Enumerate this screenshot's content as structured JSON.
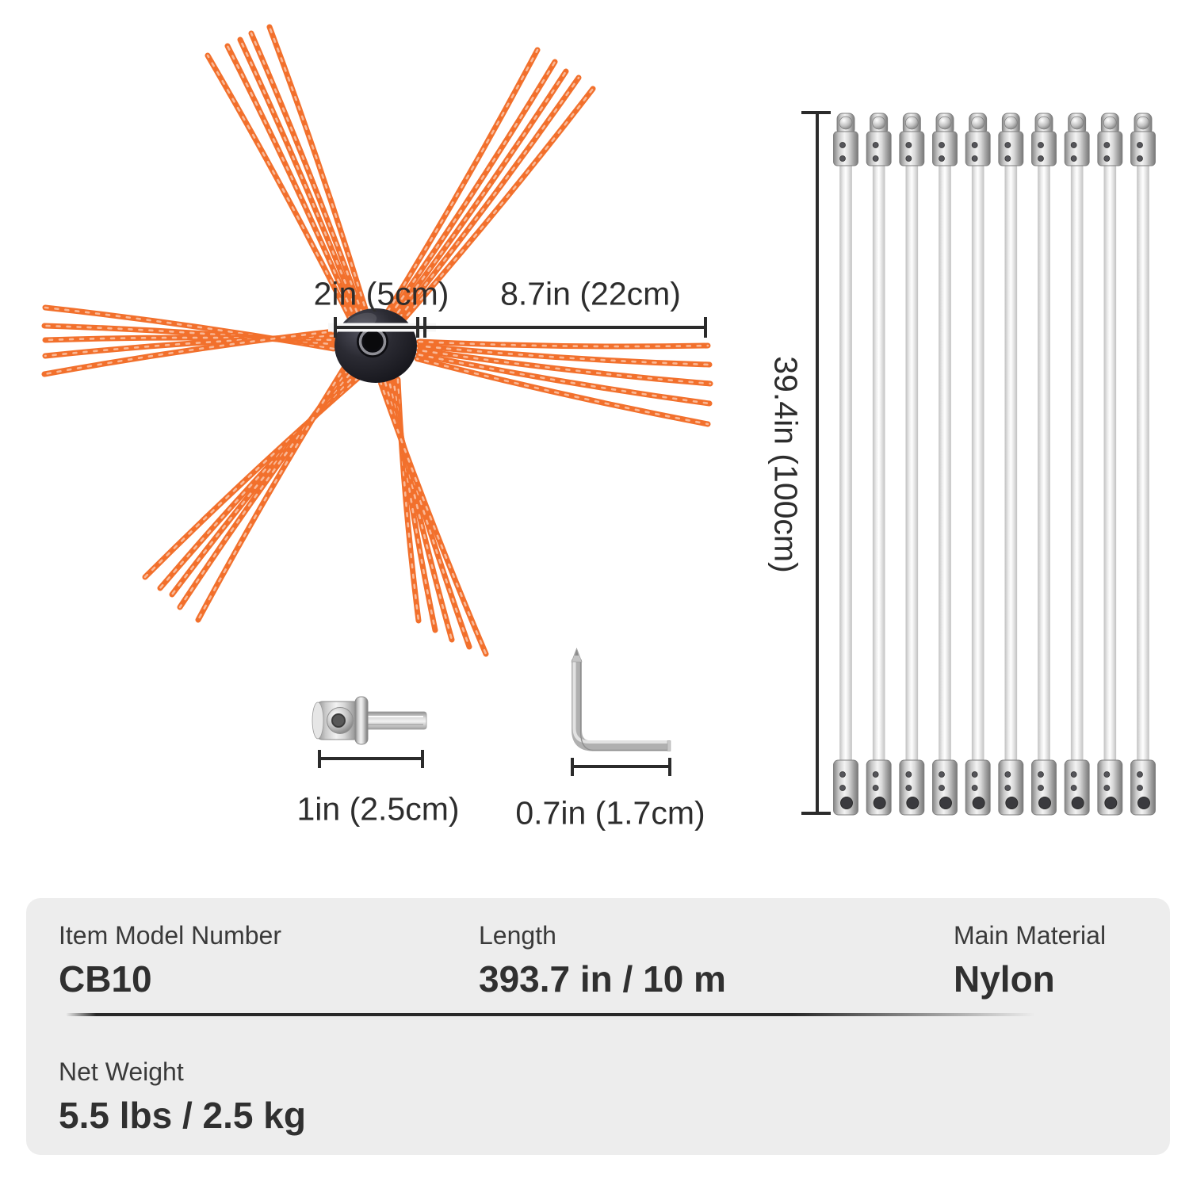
{
  "colors": {
    "bristle_orange": "#f2702c",
    "bristle_highlight": "rgba(255,255,255,0.5)",
    "hub_dark": "#1d1d25",
    "dimension_line": "#2b2b2b",
    "table_background": "#ededed",
    "label_text": "#3a3a3a",
    "value_text": "#303030"
  },
  "brush_diagram": {
    "hub_diameter_label": "2in (5cm)",
    "bristle_length_label": "8.7in (22cm)",
    "bristle_clusters": 6,
    "bristles_per_cluster": 5
  },
  "rods_diagram": {
    "rod_count": 10,
    "length_label": "39.4in (100cm)"
  },
  "adapter_diagram": {
    "length_label": "1in (2.5cm)"
  },
  "hex_key_diagram": {
    "length_label": "0.7in (1.7cm)"
  },
  "spec_table": {
    "row1": {
      "col1": {
        "label": "Item Model Number",
        "value": "CB10"
      },
      "col2": {
        "label": "Length",
        "value": "393.7 in / 10 m"
      },
      "col3": {
        "label": "Main Material",
        "value": "Nylon"
      }
    },
    "row2": {
      "col1": {
        "label": "Net Weight",
        "value": "5.5 lbs / 2.5 kg"
      }
    }
  }
}
